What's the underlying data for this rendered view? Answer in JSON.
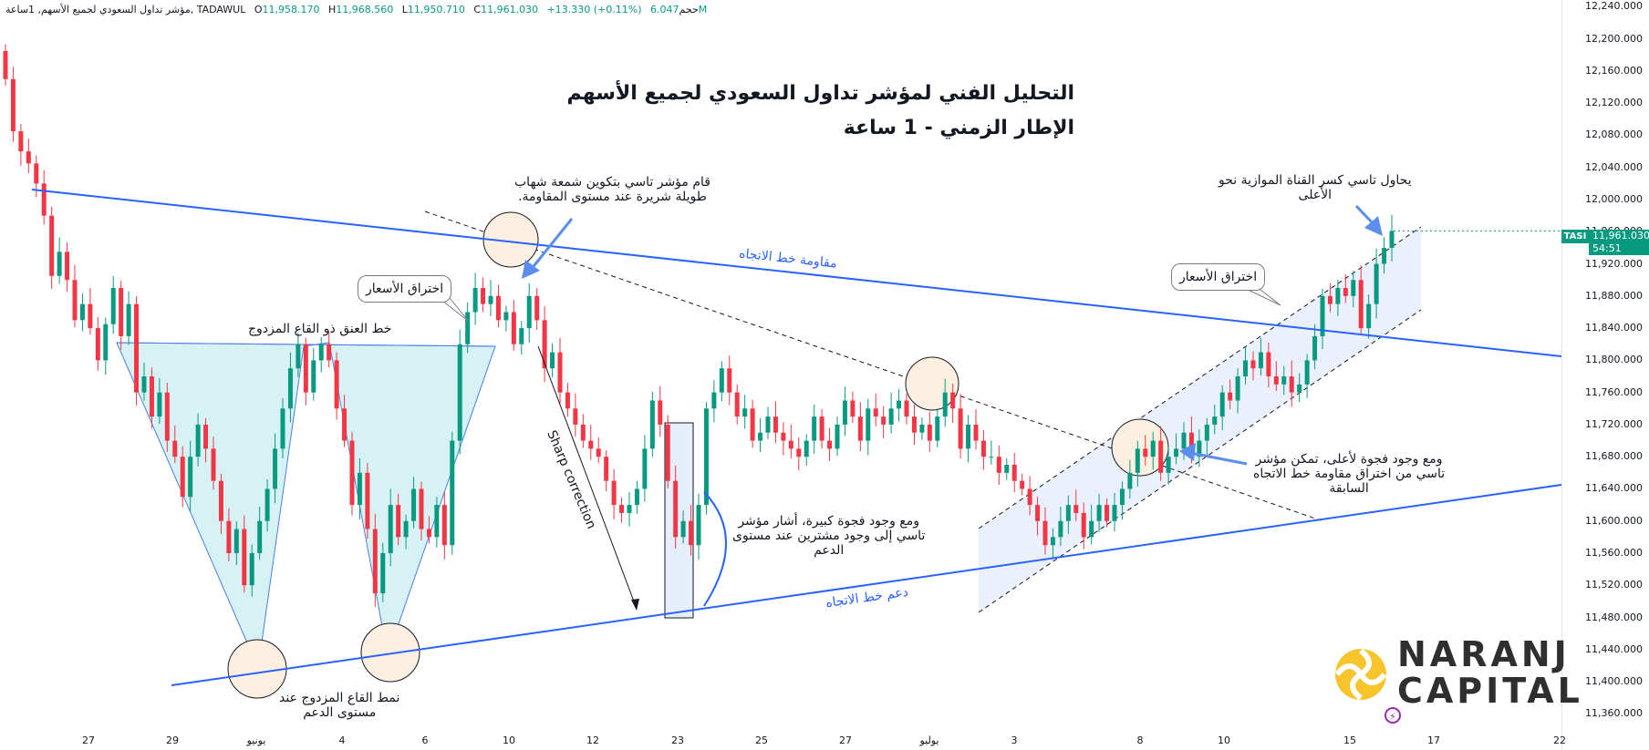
{
  "header": {
    "symbol_line": "مؤشر تداول السعودي لجميع الأسهم, 1ساعة, TADAWUL",
    "open_label": "O",
    "open": "11,958.170",
    "high_label": "H",
    "high": "11,968.560",
    "low_label": "L",
    "low": "11,950.710",
    "close_label": "C",
    "close": "11,961.030",
    "change": "+13.330 (+0.11%)",
    "volume_label": "حجم",
    "volume": "6.047M"
  },
  "titles": {
    "main": "التحليل الفني لمؤشر تداول السعودي لجميع الأسهم",
    "sub": "الإطار الزمني - 1 ساعة"
  },
  "annotations": {
    "shooting_star_l1": "قام مؤشر تاسي بتكوين شمعة شهاب",
    "shooting_star_l2": "طويلة شريرة عند مستوى المقاومة.",
    "breakout_left": "اختراق الأسعار",
    "breakout_right": "اختراق الأسعار",
    "neckline": "خط العنق ذو القاع المزدوج",
    "double_bottom_l1": "نمط القاع المزدوج عند",
    "double_bottom_l2": "مستوى الدعم",
    "sharp_correction": "Sharp correction",
    "gap_buyers_l1": "ومع وجود فجوة كبيرة، أشار مؤشر",
    "gap_buyers_l2": "تاسي إلى وجود مشترين عند مستوى",
    "gap_buyers_l3": "الدعم",
    "channel_break_l1": "يحاول تاسي كسر القناة الموازية نحو",
    "channel_break_l2": "الأعلى",
    "gap_up_l1": "ومع وجود فجوة لأعلى، تمكن مؤشر",
    "gap_up_l2": "تاسي من اختراق مقاومة خط الاتجاه",
    "gap_up_l3": "السابقة",
    "trend_resistance": "مقاومة خط الاتجاه",
    "trend_support": "دعم خط الاتجاه"
  },
  "price_tag": {
    "symbol": "TASI",
    "price": "11,961.030",
    "countdown": "54:51"
  },
  "logo": {
    "line1": "NARANJ",
    "line2": "CAPITAL"
  },
  "colors": {
    "up": "#089981",
    "down": "#f23645",
    "trendline": "#2962ff",
    "pattern_fill": "#d7f2f5",
    "channel_fill": "#eaf1fd",
    "circle_fill": "#fdf0e1",
    "logo_yellow": "#f7c52b",
    "logo_text": "#2f2f2f"
  },
  "chart_data": {
    "type": "candlestick",
    "title": "التحليل الفني لمؤشر تداول السعودي لجميع الأسهم",
    "subtitle": "الإطار الزمني - 1 ساعة",
    "timeframe": "1h",
    "y_axis": {
      "side": "right",
      "range": [
        11340,
        12245
      ],
      "ticks": [
        "12,240.000",
        "12,200.000",
        "12,160.000",
        "12,120.000",
        "12,080.000",
        "12,040.000",
        "12,000.000",
        "11,960.000",
        "11,920.000",
        "11,880.000",
        "11,840.000",
        "11,800.000",
        "11,760.000",
        "11,720.000",
        "11,680.000",
        "11,640.000",
        "11,600.000",
        "11,560.000",
        "11,520.000",
        "11,480.000",
        "11,440.000",
        "11,400.000",
        "11,360.000"
      ]
    },
    "x_axis": {
      "labels": [
        "27",
        "29",
        "يونيو",
        "4",
        "6",
        "10",
        "12",
        "23",
        "25",
        "27",
        "يوليو",
        "3",
        "8",
        "10",
        "15",
        "17",
        "22"
      ]
    },
    "grid": false,
    "last_price": 11961.03,
    "candle_closes": [
      12150,
      12085,
      12060,
      12045,
      12020,
      11980,
      11905,
      11935,
      11900,
      11850,
      11870,
      11840,
      11800,
      11845,
      11890,
      11830,
      11870,
      11760,
      11780,
      11730,
      11760,
      11700,
      11680,
      11630,
      11680,
      11720,
      11690,
      11650,
      11600,
      11560,
      11590,
      11520,
      11560,
      11600,
      11640,
      11690,
      11740,
      11790,
      11820,
      11760,
      11800,
      11820,
      11800,
      11740,
      11700,
      11620,
      11660,
      11590,
      11510,
      11560,
      11620,
      11580,
      11600,
      11640,
      11590,
      11580,
      11620,
      11570,
      11700,
      11820,
      11860,
      11890,
      11870,
      11880,
      11850,
      11860,
      11820,
      11840,
      11880,
      11850,
      11790,
      11810,
      11760,
      11740,
      11720,
      11700,
      11690,
      11680,
      11650,
      11620,
      11610,
      11620,
      11640,
      11690,
      11750,
      11720,
      11650,
      11580,
      11600,
      11570,
      11620,
      11740,
      11760,
      11790,
      11760,
      11730,
      11740,
      11700,
      11710,
      11730,
      11710,
      11700,
      11690,
      11680,
      11700,
      11730,
      11700,
      11690,
      11720,
      11750,
      11730,
      11700,
      11740,
      11730,
      11720,
      11740,
      11750,
      11730,
      11710,
      11720,
      11700,
      11730,
      11760,
      11740,
      11690,
      11720,
      11700,
      11680,
      11680,
      11660,
      11670,
      11650,
      11640,
      11620,
      11600,
      11570,
      11580,
      11600,
      11620,
      11610,
      11580,
      11600,
      11620,
      11600,
      11620,
      11640,
      11660,
      11690,
      11680,
      11700,
      11660,
      11680,
      11690,
      11710,
      11680,
      11700,
      11720,
      11730,
      11760,
      11750,
      11780,
      11800,
      11790,
      11810,
      11780,
      11770,
      11780,
      11760,
      11770,
      11800,
      11830,
      11880,
      11870,
      11890,
      11880,
      11900,
      11840,
      11870,
      11920,
      11940,
      11961
    ]
  }
}
